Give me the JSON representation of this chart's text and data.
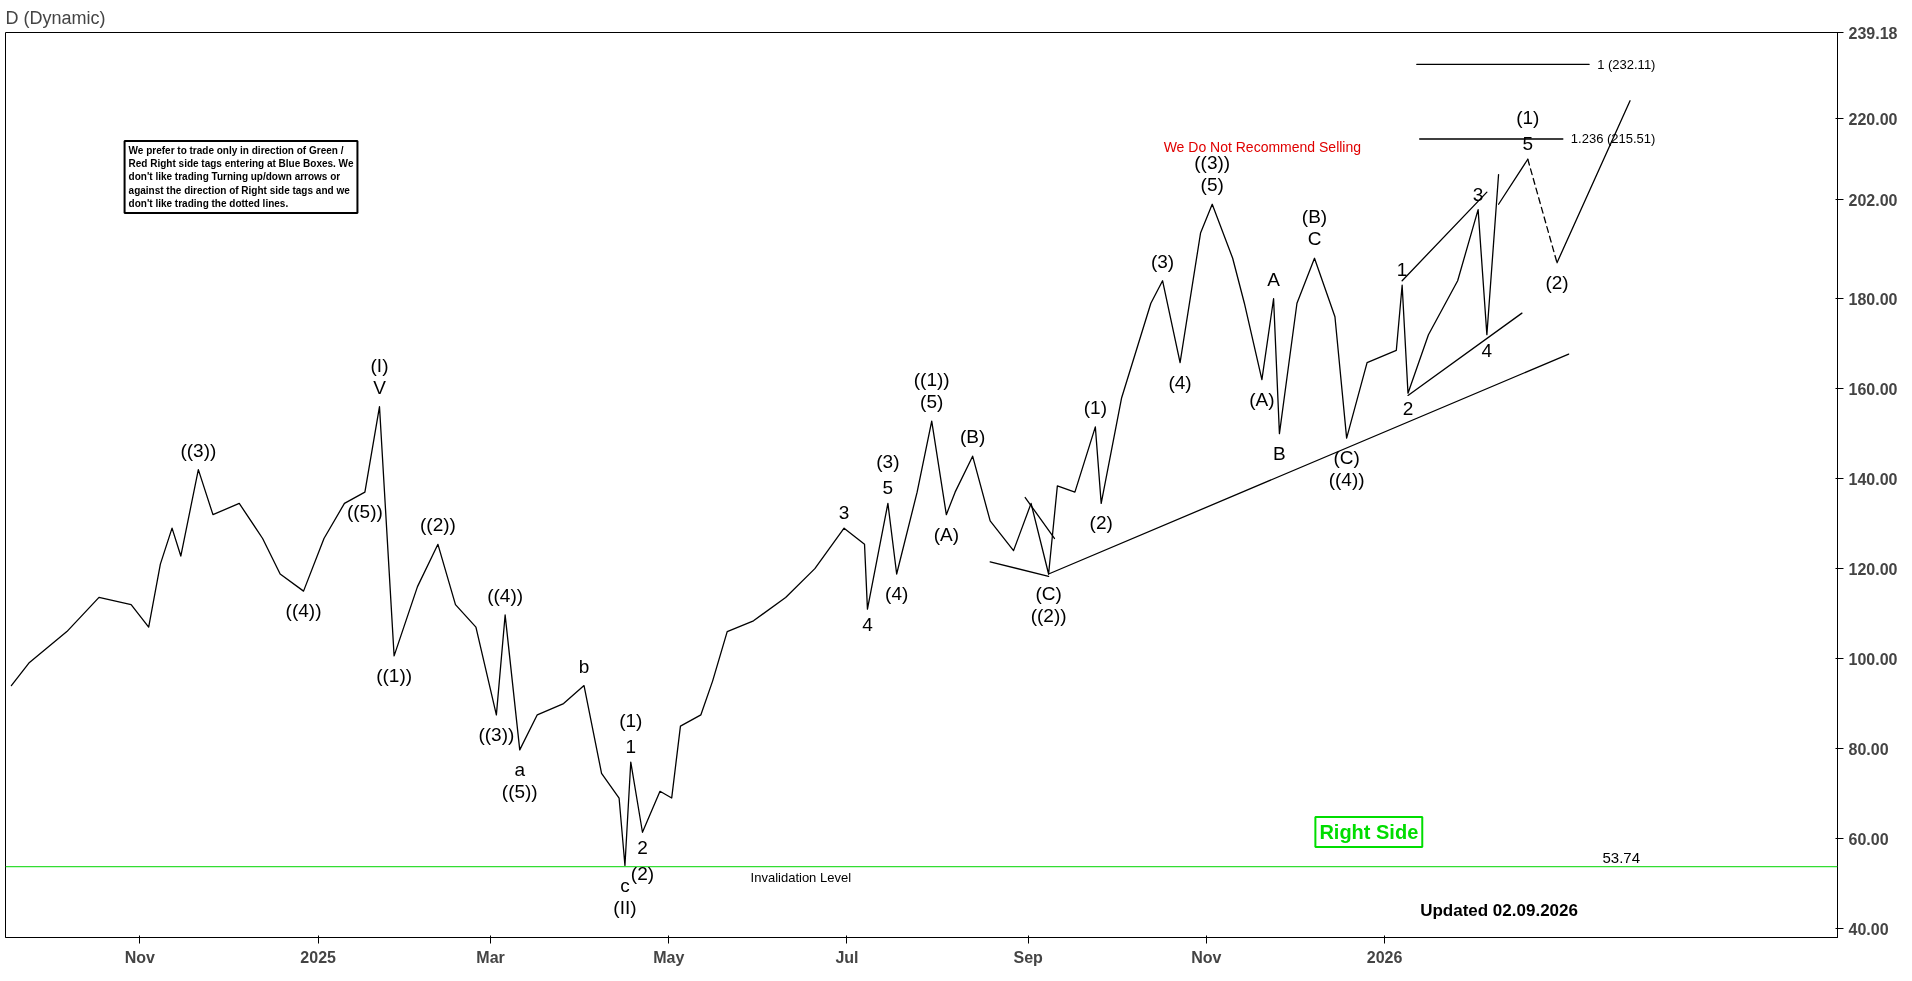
{
  "chart_data": {
    "type": "line",
    "title": "D (Dynamic)",
    "xlim": [
      "2024-09-16",
      "2026-06-05"
    ],
    "ylim": [
      38,
      239.18
    ],
    "xticks": [
      {
        "value": "2024-11-01",
        "label": "Nov"
      },
      {
        "value": "2025-01-01",
        "label": "2025"
      },
      {
        "value": "2025-03-01",
        "label": "Mar"
      },
      {
        "value": "2025-05-01",
        "label": "May"
      },
      {
        "value": "2025-07-01",
        "label": "Jul"
      },
      {
        "value": "2025-09-01",
        "label": "Sep"
      },
      {
        "value": "2025-11-01",
        "label": "Nov"
      },
      {
        "value": "2026-01-01",
        "label": "2026"
      }
    ],
    "yticks": [
      {
        "value": 40,
        "label": "40.00"
      },
      {
        "value": 60,
        "label": "60.00"
      },
      {
        "value": 80,
        "label": "80.00"
      },
      {
        "value": 100,
        "label": "100.00"
      },
      {
        "value": 120,
        "label": "120.00"
      },
      {
        "value": 140,
        "label": "140.00"
      },
      {
        "value": 160,
        "label": "160.00"
      },
      {
        "value": 180,
        "label": "180.00"
      },
      {
        "value": 202,
        "label": "202.00"
      },
      {
        "value": 220,
        "label": "220.00"
      },
      {
        "value": 239.18,
        "label": "239.18"
      }
    ],
    "grid": false,
    "marker": "none",
    "line_style": "solid",
    "series": [
      {
        "color": "#000000",
        "x": [
          "2024-09-18",
          "2024-09-24",
          "2024-10-07",
          "2024-10-18",
          "2024-10-29",
          "2024-11-04",
          "2024-11-08",
          "2024-11-12",
          "2024-11-15",
          "2024-11-21",
          "2024-11-26",
          "2024-12-05",
          "2024-12-13",
          "2024-12-19",
          "2024-12-27",
          "2025-01-03",
          "2025-01-10",
          "2025-01-17",
          "2025-01-22",
          "2025-01-27",
          "2025-02-04",
          "2025-02-11",
          "2025-02-17",
          "2025-02-24",
          "2025-03-03",
          "2025-03-06",
          "2025-03-11",
          "2025-03-17",
          "2025-03-26",
          "2025-04-02",
          "2025-04-08",
          "2025-04-14",
          "2025-04-16",
          "2025-04-18",
          "2025-04-22",
          "2025-04-28",
          "2025-05-02",
          "2025-05-05",
          "2025-05-12",
          "2025-05-16",
          "2025-05-21",
          "2025-05-30",
          "2025-06-10",
          "2025-06-20",
          "2025-06-30",
          "2025-07-07",
          "2025-07-08",
          "2025-07-15",
          "2025-07-18",
          "2025-07-25",
          "2025-07-30",
          "2025-08-04",
          "2025-08-07",
          "2025-08-13",
          "2025-08-19",
          "2025-08-27",
          "2025-09-02",
          "2025-09-08",
          "2025-09-11",
          "2025-09-17",
          "2025-09-24",
          "2025-09-26",
          "2025-10-03",
          "2025-10-13",
          "2025-10-17",
          "2025-10-23",
          "2025-10-30",
          "2025-11-03",
          "2025-11-10",
          "2025-11-14",
          "2025-11-20",
          "2025-11-24",
          "2025-11-26",
          "2025-12-02",
          "2025-12-08",
          "2025-12-15",
          "2025-12-19",
          "2025-12-26",
          "2026-01-05",
          "2026-01-07",
          "2026-01-09",
          "2026-01-16",
          "2026-01-26",
          "2026-02-02",
          "2026-02-05",
          "2026-02-09"
        ],
        "values": [
          94,
          99,
          106,
          113.6,
          112,
          107,
          121,
          129,
          122.8,
          142,
          132,
          134.5,
          126.7,
          118.8,
          115,
          126.7,
          134.5,
          137,
          156,
          100.6,
          116,
          125.4,
          112,
          107,
          87.5,
          109.7,
          79.7,
          87.5,
          90,
          94,
          74.5,
          69,
          54,
          77,
          61.4,
          70.5,
          69,
          85,
          87.5,
          95,
          106,
          108.4,
          113.6,
          120,
          129,
          125.4,
          111,
          134.5,
          118.8,
          137,
          152.8,
          132,
          137,
          145,
          130.6,
          124,
          134.5,
          118.8,
          138.4,
          137,
          151.5,
          134.5,
          158,
          179,
          184,
          165.8,
          194.6,
          201,
          189,
          179,
          162,
          180,
          150,
          179,
          189,
          176,
          149,
          165.8,
          168.5,
          183,
          159,
          172,
          184,
          199.8,
          172,
          207.6
        ]
      },
      {
        "color": "#000000",
        "x": [
          "2025-09-08",
          "2026-03-05"
        ],
        "values": [
          118.8,
          167.7
        ]
      },
      {
        "color": "#000000",
        "x": [
          "2025-08-31",
          "2025-09-10"
        ],
        "values": [
          135.8,
          126.7
        ]
      },
      {
        "color": "#000000",
        "x": [
          "2025-08-19",
          "2025-09-08"
        ],
        "values": [
          121.5,
          118.3
        ]
      },
      {
        "color": "#000000",
        "x": [
          "2026-01-07",
          "2026-02-05"
        ],
        "values": [
          184,
          203.7
        ]
      },
      {
        "color": "#000000",
        "x": [
          "2026-01-09",
          "2026-02-17"
        ],
        "values": [
          158.5,
          176.8
        ]
      },
      {
        "color": "#000000",
        "x": [
          "2026-02-09",
          "2026-02-19"
        ],
        "values": [
          201,
          211
        ]
      },
      {
        "color": "#000000",
        "x": [
          "2026-02-19",
          "2026-03-01"
        ],
        "values": [
          211,
          188
        ],
        "line_style": "dashed"
      },
      {
        "color": "#000000",
        "x": [
          "2026-03-01",
          "2026-03-26"
        ],
        "values": [
          188,
          224
        ]
      },
      {
        "color": "#000000",
        "x": [
          "2026-01-12",
          "2026-03-12"
        ],
        "values": [
          232.11,
          232.11
        ]
      },
      {
        "color": "#000000",
        "x": [
          "2026-01-13",
          "2026-03-03"
        ],
        "values": [
          215.51,
          215.51
        ]
      }
    ],
    "ref_lines": [
      {
        "axis": "y",
        "value": 53.74,
        "label": "53.74",
        "color": "#33dd33"
      }
    ],
    "annotations": [
      "We prefer to trade only in direction of Green / Red Right side tags entering at Blue Boxes. We don't like trading Turning up/down arrows or against the direction of Right side tags and we don't like trading the dotted lines.",
      "Right Side",
      "Updated 02.09.2026",
      "We Do Not Recommend Selling",
      {
        "text": "1 (232.11)",
        "x": "2026-03-12",
        "y": 232.11
      },
      {
        "text": "1.236 (215.51)",
        "x": "2026-03-03",
        "y": 215.51
      },
      {
        "text": "Invalidation Level",
        "x": "2025-05-29",
        "y": 53.74
      },
      {
        "text": "((3))",
        "x": "2024-11-21",
        "y": 142
      },
      {
        "text": "((4))",
        "x": "2024-12-27",
        "y": 115
      },
      {
        "text": "((5))",
        "x": "2025-01-17",
        "y": 137
      },
      {
        "text": "V",
        "x": "2025-01-22",
        "y": 156
      },
      {
        "text": "(I)",
        "x": "2025-01-22",
        "y": 156
      },
      {
        "text": "((1))",
        "x": "2025-01-27",
        "y": 100.6
      },
      {
        "text": "((2))",
        "x": "2025-02-11",
        "y": 125.4
      },
      {
        "text": "((3))",
        "x": "2025-03-03",
        "y": 87.5
      },
      {
        "text": "((4))",
        "x": "2025-03-06",
        "y": 109.7
      },
      {
        "text": "a",
        "x": "2025-03-11",
        "y": 79.7
      },
      {
        "text": "((5))",
        "x": "2025-03-11",
        "y": 79.7
      },
      {
        "text": "b",
        "x": "2025-04-02",
        "y": 94
      },
      {
        "text": "c",
        "x": "2025-04-16",
        "y": 54
      },
      {
        "text": "(II)",
        "x": "2025-04-16",
        "y": 54
      },
      {
        "text": "1",
        "x": "2025-04-18",
        "y": 77
      },
      {
        "text": "(1)",
        "x": "2025-04-18",
        "y": 77
      },
      {
        "text": "2",
        "x": "2025-04-22",
        "y": 61.4
      },
      {
        "text": "(2)",
        "x": "2025-04-22",
        "y": 61.4
      },
      {
        "text": "3",
        "x": "2025-06-30",
        "y": 129
      },
      {
        "text": "4",
        "x": "2025-07-08",
        "y": 111
      },
      {
        "text": "5",
        "x": "2025-07-15",
        "y": 134.5
      },
      {
        "text": "(3)",
        "x": "2025-07-15",
        "y": 134.5
      },
      {
        "text": "(4)",
        "x": "2025-07-18",
        "y": 118.8
      },
      {
        "text": "(5)",
        "x": "2025-07-30",
        "y": 152.8
      },
      {
        "text": "((1))",
        "x": "2025-07-30",
        "y": 152.8
      },
      {
        "text": "(A)",
        "x": "2025-08-04",
        "y": 132
      },
      {
        "text": "(B)",
        "x": "2025-08-13",
        "y": 145
      },
      {
        "text": "(C)",
        "x": "2025-09-08",
        "y": 118.8
      },
      {
        "text": "((2))",
        "x": "2025-09-08",
        "y": 118.8
      },
      {
        "text": "(1)",
        "x": "2025-09-24",
        "y": 151.5
      },
      {
        "text": "(2)",
        "x": "2025-09-26",
        "y": 134.5
      },
      {
        "text": "(3)",
        "x": "2025-10-17",
        "y": 184
      },
      {
        "text": "(4)",
        "x": "2025-10-23",
        "y": 165.8
      },
      {
        "text": "(5)",
        "x": "2025-11-03",
        "y": 201
      },
      {
        "text": "((3))",
        "x": "2025-11-03",
        "y": 201
      },
      {
        "text": "(A)",
        "x": "2025-11-20",
        "y": 162
      },
      {
        "text": "A",
        "x": "2025-11-24",
        "y": 180
      },
      {
        "text": "B",
        "x": "2025-11-26",
        "y": 150
      },
      {
        "text": "C",
        "x": "2025-12-08",
        "y": 189
      },
      {
        "text": "(B)",
        "x": "2025-12-08",
        "y": 189
      },
      {
        "text": "(C)",
        "x": "2025-12-19",
        "y": 149
      },
      {
        "text": "((4))",
        "x": "2025-12-19",
        "y": 149
      },
      {
        "text": "1",
        "x": "2026-01-07",
        "y": 183
      },
      {
        "text": "2",
        "x": "2026-01-09",
        "y": 159
      },
      {
        "text": "3",
        "x": "2026-02-02",
        "y": 199.8
      },
      {
        "text": "4",
        "x": "2026-02-05",
        "y": 172
      },
      {
        "text": "5",
        "x": "2026-02-19",
        "y": 211
      },
      {
        "text": "(1)",
        "x": "2026-02-19",
        "y": 211
      },
      {
        "text": "(2)",
        "x": "2026-03-01",
        "y": 188
      }
    ]
  }
}
